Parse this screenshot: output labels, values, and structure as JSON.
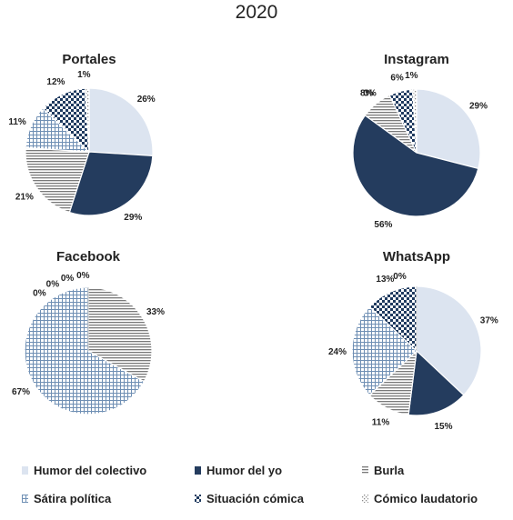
{
  "figure_title": "2020",
  "colors": {
    "humor_colectivo": "#dce4f0",
    "humor_yo": "#243c5e",
    "burla_line": "#7a7a7a",
    "satira_line": "#6f8fb4",
    "situacion_dot": "#1f3a5f",
    "comico_dot": "#8a8a8a",
    "edge": "#ffffff"
  },
  "chart_data": [
    {
      "type": "pie",
      "title": "Portales",
      "categories": [
        "Humor del colectivo",
        "Humor del yo",
        "Burla",
        "Sátira política",
        "Situación cómica",
        "Cómico laudatorio"
      ],
      "values": [
        26,
        29,
        21,
        11,
        12,
        1
      ],
      "labels": [
        "26%",
        "29%",
        "21%",
        "11%",
        "12%",
        "1%"
      ]
    },
    {
      "type": "pie",
      "title": "Instagram",
      "categories": [
        "Humor del colectivo",
        "Humor del yo",
        "Burla",
        "Sátira política",
        "Situación cómica",
        "Cómico laudatorio"
      ],
      "values": [
        29,
        56,
        8,
        0,
        6,
        1
      ],
      "labels": [
        "29%",
        "56%",
        "8%",
        "0%",
        "6%",
        "1%"
      ]
    },
    {
      "type": "pie",
      "title": "Facebook",
      "categories": [
        "Humor del colectivo",
        "Humor del yo",
        "Burla",
        "Sátira política",
        "Situación cómica",
        "Cómico laudatorio"
      ],
      "values": [
        0,
        0,
        33,
        67,
        0,
        0
      ],
      "labels": [
        "0%",
        "0%",
        "33%",
        "67%",
        "0%",
        "0%"
      ]
    },
    {
      "type": "pie",
      "title": "WhatsApp",
      "categories": [
        "Humor del colectivo",
        "Humor del yo",
        "Burla",
        "Sátira política",
        "Situación cómica",
        "Cómico laudatorio"
      ],
      "values": [
        37,
        15,
        11,
        24,
        13,
        0
      ],
      "labels": [
        "37%",
        "15%",
        "11%",
        "24%",
        "13%",
        "0%"
      ]
    }
  ],
  "legend": {
    "placement": "bottom",
    "items": [
      {
        "label": "Humor del colectivo",
        "pattern": "humor_colectivo"
      },
      {
        "label": "Humor del yo",
        "pattern": "humor_yo"
      },
      {
        "label": "Burla",
        "pattern": "burla"
      },
      {
        "label": "Sátira política",
        "pattern": "satira"
      },
      {
        "label": "Situación cómica",
        "pattern": "situacion"
      },
      {
        "label": "Cómico laudatorio",
        "pattern": "comico"
      }
    ]
  }
}
